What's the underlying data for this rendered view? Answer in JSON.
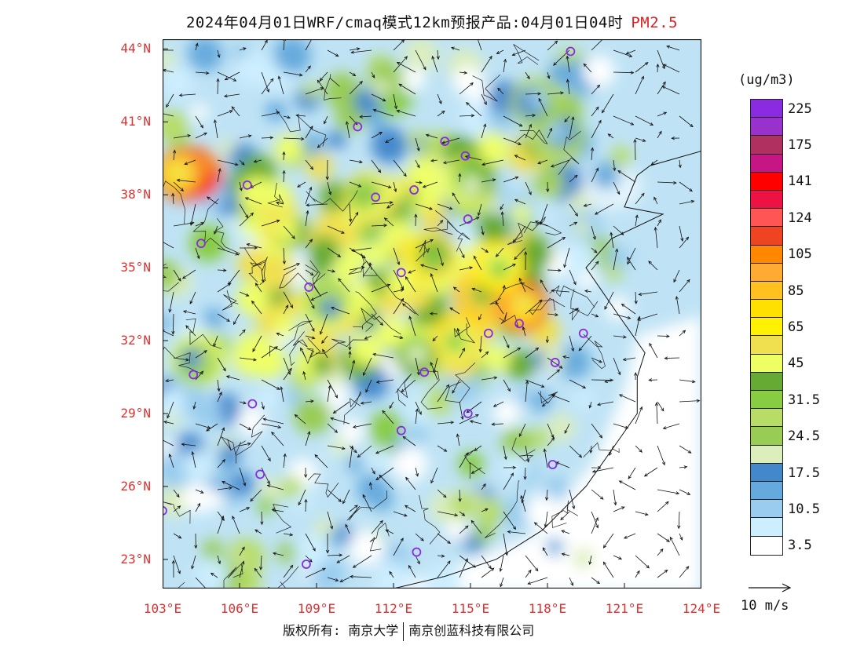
{
  "title": {
    "main": "2024年04月01日WRF/cmaq模式12km预报产品:04月01日04时",
    "pollutant": "PM2.5"
  },
  "map": {
    "lat_ticks": [
      {
        "label": "44°N",
        "lat": 44
      },
      {
        "label": "41°N",
        "lat": 41
      },
      {
        "label": "38°N",
        "lat": 38
      },
      {
        "label": "35°N",
        "lat": 35
      },
      {
        "label": "32°N",
        "lat": 32
      },
      {
        "label": "29°N",
        "lat": 29
      },
      {
        "label": "26°N",
        "lat": 26
      },
      {
        "label": "23°N",
        "lat": 23
      }
    ],
    "lon_ticks": [
      {
        "label": "103°E",
        "lon": 103
      },
      {
        "label": "106°E",
        "lon": 106
      },
      {
        "label": "109°E",
        "lon": 109
      },
      {
        "label": "112°E",
        "lon": 112
      },
      {
        "label": "115°E",
        "lon": 115
      },
      {
        "label": "118°E",
        "lon": 118
      },
      {
        "label": "121°E",
        "lon": 121
      },
      {
        "label": "124°E",
        "lon": 124
      }
    ],
    "extent": {
      "lon_min": 103,
      "lon_max": 124,
      "lat_min": 21.8,
      "lat_max": 44.4
    },
    "cities": [
      {
        "lon": 118.9,
        "lat": 43.9
      },
      {
        "lon": 110.6,
        "lat": 40.8
      },
      {
        "lon": 114.0,
        "lat": 40.2
      },
      {
        "lon": 114.8,
        "lat": 39.6
      },
      {
        "lon": 106.3,
        "lat": 38.4
      },
      {
        "lon": 111.3,
        "lat": 37.9
      },
      {
        "lon": 112.8,
        "lat": 38.2
      },
      {
        "lon": 114.9,
        "lat": 37.0
      },
      {
        "lon": 104.5,
        "lat": 36.0
      },
      {
        "lon": 112.3,
        "lat": 34.8
      },
      {
        "lon": 108.7,
        "lat": 34.2
      },
      {
        "lon": 116.9,
        "lat": 32.7
      },
      {
        "lon": 115.7,
        "lat": 32.3
      },
      {
        "lon": 119.4,
        "lat": 32.3
      },
      {
        "lon": 118.3,
        "lat": 31.1
      },
      {
        "lon": 104.2,
        "lat": 30.6
      },
      {
        "lon": 113.2,
        "lat": 30.7
      },
      {
        "lon": 106.5,
        "lat": 29.4
      },
      {
        "lon": 112.3,
        "lat": 28.3
      },
      {
        "lon": 114.9,
        "lat": 29.0
      },
      {
        "lon": 106.8,
        "lat": 26.5
      },
      {
        "lon": 118.2,
        "lat": 26.9
      },
      {
        "lon": 103.0,
        "lat": 25.0
      },
      {
        "lon": 108.6,
        "lat": 22.8
      },
      {
        "lon": 112.9,
        "lat": 23.3
      }
    ],
    "pollution_hotspots": [
      {
        "lon": 111.0,
        "lat": 38.0,
        "value": 55
      },
      {
        "lon": 115.0,
        "lat": 38.5,
        "value": 50
      },
      {
        "lon": 113.5,
        "lat": 35.5,
        "value": 70
      },
      {
        "lon": 115.5,
        "lat": 34.0,
        "value": 90
      },
      {
        "lon": 117.0,
        "lat": 33.5,
        "value": 120
      },
      {
        "lon": 116.2,
        "lat": 35.0,
        "value": 80
      },
      {
        "lon": 104.3,
        "lat": 39.0,
        "value": 150
      },
      {
        "lon": 103.7,
        "lat": 39.0,
        "value": 120
      },
      {
        "lon": 109.5,
        "lat": 33.5,
        "value": 45
      },
      {
        "lon": 104.3,
        "lat": 31.2,
        "value": 45
      },
      {
        "lon": 113.0,
        "lat": 31.5,
        "value": 50
      },
      {
        "lon": 118.5,
        "lat": 40.5,
        "value": 30
      },
      {
        "lon": 117.5,
        "lat": 41.8,
        "value": 30
      },
      {
        "lon": 114.5,
        "lat": 32.0,
        "value": 75
      }
    ]
  },
  "colorbar": {
    "unit": "(ug/m3)",
    "colors": [
      "#8a2be2",
      "#9932cc",
      "#b03060",
      "#c71585",
      "#ff0000",
      "#ee1144",
      "#ff5555",
      "#ee4422",
      "#ff8800",
      "#ffaa33",
      "#ffc020",
      "#ffe000",
      "#fff200",
      "#f0e050",
      "#eeff66",
      "#66aa33",
      "#88cc44",
      "#b8dd66",
      "#99cc55",
      "#dceebb",
      "#4488cc",
      "#66aadd",
      "#99ccee",
      "#cceeff",
      "#ffffff"
    ],
    "labels": [
      {
        "text": "225",
        "index": 1
      },
      {
        "text": "175",
        "index": 3
      },
      {
        "text": "141",
        "index": 5
      },
      {
        "text": "124",
        "index": 7
      },
      {
        "text": "105",
        "index": 9
      },
      {
        "text": "85",
        "index": 11
      },
      {
        "text": "65",
        "index": 13
      },
      {
        "text": "45",
        "index": 15
      },
      {
        "text": "31.5",
        "index": 17
      },
      {
        "text": "24.5",
        "index": 19
      },
      {
        "text": "17.5",
        "index": 21
      },
      {
        "text": "10.5",
        "index": 23
      },
      {
        "text": "3.5",
        "index": 25
      }
    ]
  },
  "wind_reference": {
    "label": "10 m/s"
  },
  "footer": {
    "copyright": "版权所有: 南京大学",
    "company": "南京创蓝科技有限公司"
  }
}
